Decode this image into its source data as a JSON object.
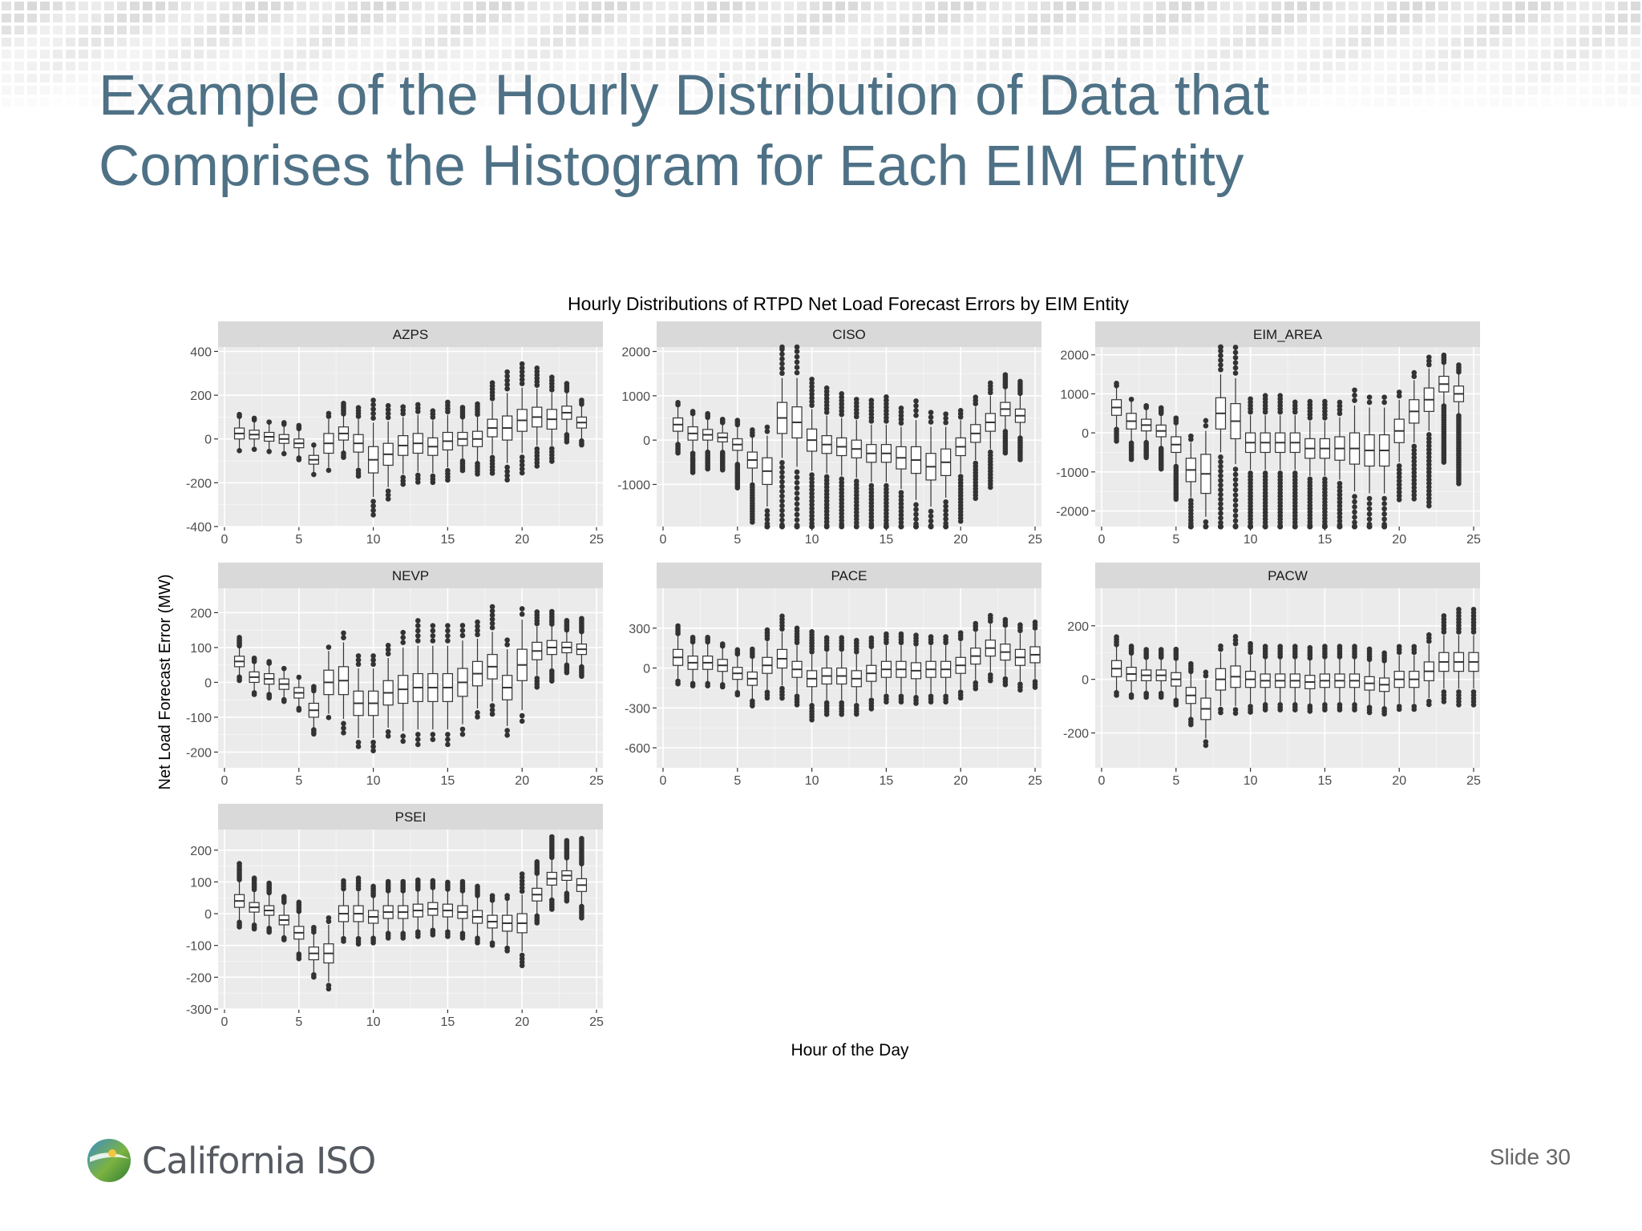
{
  "slide": {
    "title_line1": "Example of the Hourly Distribution of Data that",
    "title_line2": "Comprises the Histogram for Each EIM Entity",
    "slide_number": "Slide 30",
    "logo_text": "California ISO"
  },
  "colors": {
    "title": "#4e7186",
    "panel_bg": "#ebebeb",
    "strip_bg": "#d9d9d9",
    "grid": "#ffffff",
    "box_fill": "#ffffff",
    "box_stroke": "#333333",
    "outlier": "#333333"
  },
  "chart_data": {
    "type": "boxplot",
    "title": "Hourly Distributions of RTPD Net Load Forecast Errors by EIM Entity",
    "xlabel": "Hour of the Day",
    "ylabel": "Net Load Forecast Error (MW)",
    "grid": true,
    "x_ticks": [
      0,
      5,
      10,
      15,
      20,
      25
    ],
    "x_range": [
      0,
      25
    ],
    "panels": [
      {
        "name": "AZPS",
        "ylim": [
          -400,
          420
        ],
        "y_ticks": [
          400,
          200,
          0,
          -200,
          -400
        ],
        "median": [
          25,
          20,
          10,
          0,
          -20,
          -95,
          -20,
          25,
          -20,
          -95,
          -70,
          -30,
          -20,
          -35,
          -10,
          0,
          0,
          50,
          50,
          85,
          100,
          90,
          120,
          75
        ],
        "spread": [
          25,
          20,
          20,
          20,
          20,
          20,
          45,
          30,
          40,
          60,
          50,
          45,
          45,
          40,
          40,
          30,
          35,
          40,
          55,
          50,
          45,
          45,
          30,
          25
        ],
        "whisker": [
          70,
          60,
          60,
          60,
          60,
          60,
          110,
          80,
          110,
          170,
          150,
          130,
          130,
          120,
          120,
          90,
          100,
          120,
          160,
          150,
          130,
          120,
          90,
          75
        ],
        "outliers": [
          [
            2,
            3
          ],
          [
            2,
            6
          ],
          [
            1,
            1
          ],
          [
            2,
            12
          ],
          [
            3,
            18
          ],
          [
            1,
            5
          ],
          [
            2,
            7
          ],
          [
            6,
            25
          ],
          [
            4,
            30
          ],
          [
            5,
            35
          ],
          [
            4,
            30
          ],
          [
            3,
            25
          ],
          [
            3,
            25
          ],
          [
            3,
            25
          ],
          [
            4,
            40
          ],
          [
            5,
            45
          ],
          [
            5,
            45
          ],
          [
            6,
            60
          ],
          [
            5,
            40
          ],
          [
            6,
            50
          ],
          [
            6,
            60
          ],
          [
            5,
            50
          ],
          [
            4,
            40
          ],
          [
            3,
            30
          ]
        ]
      },
      {
        "name": "CISO",
        "ylim": [
          -1950,
          2100
        ],
        "y_ticks": [
          2000,
          1000,
          0,
          -1000
        ],
        "median": [
          350,
          150,
          120,
          60,
          -100,
          -450,
          -700,
          500,
          400,
          0,
          -100,
          -150,
          -200,
          -300,
          -300,
          -400,
          -450,
          -600,
          -500,
          -150,
          150,
          400,
          700,
          550
        ],
        "spread": [
          150,
          150,
          120,
          100,
          130,
          180,
          300,
          350,
          350,
          250,
          200,
          200,
          200,
          200,
          200,
          250,
          300,
          300,
          300,
          200,
          200,
          200,
          150,
          150
        ],
        "whisker": [
          400,
          400,
          350,
          300,
          400,
          500,
          800,
          900,
          1000,
          700,
          650,
          650,
          650,
          650,
          650,
          700,
          900,
          900,
          800,
          600,
          600,
          600,
          450,
          450
        ],
        "outliers": [
          [
            2,
            50
          ],
          [
            2,
            100
          ],
          [
            3,
            100
          ],
          [
            3,
            120
          ],
          [
            3,
            120
          ],
          [
            3,
            150
          ],
          [
            2,
            200
          ],
          [
            7,
            200
          ],
          [
            6,
            250
          ],
          [
            8,
            180
          ],
          [
            8,
            200
          ],
          [
            7,
            180
          ],
          [
            6,
            180
          ],
          [
            7,
            180
          ],
          [
            8,
            200
          ],
          [
            5,
            200
          ],
          [
            4,
            200
          ],
          [
            3,
            180
          ],
          [
            3,
            150
          ],
          [
            3,
            150
          ],
          [
            3,
            120
          ],
          [
            4,
            120
          ],
          [
            6,
            100
          ],
          [
            6,
            100
          ]
        ]
      },
      {
        "name": "EIM_AREA",
        "ylim": [
          -2400,
          2200
        ],
        "y_ticks": [
          2000,
          1000,
          0,
          -1000,
          -2000
        ],
        "median": [
          650,
          300,
          200,
          50,
          -300,
          -950,
          -1050,
          500,
          300,
          -250,
          -250,
          -250,
          -250,
          -400,
          -400,
          -400,
          -400,
          -450,
          -450,
          50,
          550,
          850,
          1250,
          1000
        ],
        "spread": [
          200,
          200,
          150,
          150,
          200,
          300,
          500,
          400,
          450,
          250,
          250,
          250,
          250,
          250,
          250,
          300,
          400,
          400,
          400,
          300,
          300,
          300,
          200,
          200
        ],
        "whisker": [
          500,
          500,
          400,
          400,
          500,
          700,
          1100,
          1000,
          1100,
          700,
          700,
          700,
          700,
          700,
          700,
          800,
          1100,
          1100,
          1100,
          800,
          800,
          800,
          500,
          500
        ],
        "outliers": [
          [
            2,
            60
          ],
          [
            1,
            80
          ],
          [
            2,
            90
          ],
          [
            4,
            120
          ],
          [
            3,
            150
          ],
          [
            2,
            210
          ],
          [
            2,
            240
          ],
          [
            8,
            350
          ],
          [
            6,
            300
          ],
          [
            5,
            360
          ],
          [
            6,
            380
          ],
          [
            6,
            420
          ],
          [
            4,
            340
          ],
          [
            6,
            360
          ],
          [
            6,
            380
          ],
          [
            4,
            300
          ],
          [
            3,
            260
          ],
          [
            2,
            200
          ],
          [
            2,
            200
          ],
          [
            2,
            100
          ],
          [
            2,
            150
          ],
          [
            3,
            200
          ],
          [
            4,
            250
          ],
          [
            4,
            300
          ]
        ]
      },
      {
        "name": "NEVP",
        "ylim": [
          -245,
          270
        ],
        "y_ticks": [
          200,
          100,
          0,
          -100,
          -200
        ],
        "median": [
          60,
          15,
          10,
          -5,
          -30,
          -80,
          0,
          5,
          -60,
          -60,
          -30,
          -20,
          -15,
          -15,
          -15,
          0,
          25,
          45,
          -15,
          50,
          90,
          100,
          100,
          95
        ],
        "spread": [
          15,
          15,
          15,
          15,
          15,
          20,
          35,
          40,
          35,
          35,
          35,
          40,
          40,
          40,
          40,
          40,
          35,
          35,
          35,
          45,
          25,
          20,
          15,
          15
        ],
        "whisker": [
          40,
          40,
          40,
          40,
          40,
          50,
          90,
          110,
          100,
          100,
          100,
          120,
          120,
          120,
          120,
          120,
          100,
          100,
          110,
          130,
          70,
          60,
          45,
          45
        ],
        "outliers": [
          [
            6,
            30
          ],
          [
            3,
            15
          ],
          [
            2,
            30
          ],
          [
            1,
            15
          ],
          [
            1,
            20
          ],
          [
            3,
            25
          ],
          [
            1,
            10
          ],
          [
            2,
            25
          ],
          [
            3,
            20
          ],
          [
            3,
            30
          ],
          [
            3,
            20
          ],
          [
            3,
            20
          ],
          [
            5,
            25
          ],
          [
            4,
            20
          ],
          [
            4,
            25
          ],
          [
            3,
            20
          ],
          [
            4,
            20
          ],
          [
            6,
            30
          ],
          [
            2,
            20
          ],
          [
            2,
            20
          ],
          [
            5,
            40
          ],
          [
            6,
            50
          ],
          [
            6,
            50
          ],
          [
            8,
            60
          ]
        ]
      },
      {
        "name": "PACE",
        "ylim": [
          -750,
          600
        ],
        "y_ticks": [
          300,
          0,
          -300,
          -600
        ],
        "median": [
          80,
          40,
          40,
          20,
          -40,
          -80,
          20,
          70,
          -10,
          -80,
          -60,
          -60,
          -80,
          -40,
          -10,
          -10,
          -20,
          -10,
          -10,
          20,
          90,
          150,
          120,
          80,
          100
        ],
        "spread": [
          60,
          50,
          50,
          45,
          45,
          50,
          60,
          70,
          60,
          60,
          60,
          60,
          60,
          60,
          60,
          60,
          60,
          60,
          60,
          60,
          60,
          60,
          60,
          60,
          60
        ],
        "whisker": [
          160,
          140,
          140,
          130,
          130,
          150,
          180,
          200,
          180,
          180,
          180,
          180,
          180,
          180,
          180,
          180,
          180,
          180,
          180,
          180,
          180,
          180,
          180,
          180,
          180
        ],
        "outliers": [
          [
            4,
            20
          ],
          [
            3,
            15
          ],
          [
            3,
            15
          ],
          [
            2,
            15
          ],
          [
            3,
            20
          ],
          [
            4,
            25
          ],
          [
            4,
            30
          ],
          [
            5,
            40
          ],
          [
            6,
            40
          ],
          [
            8,
            60
          ],
          [
            5,
            50
          ],
          [
            5,
            50
          ],
          [
            5,
            40
          ],
          [
            4,
            40
          ],
          [
            4,
            30
          ],
          [
            4,
            30
          ],
          [
            4,
            30
          ],
          [
            3,
            30
          ],
          [
            3,
            30
          ],
          [
            3,
            30
          ],
          [
            3,
            30
          ],
          [
            3,
            30
          ],
          [
            3,
            30
          ],
          [
            3,
            30
          ],
          [
            3,
            30
          ]
        ]
      },
      {
        "name": "PACW",
        "ylim": [
          -330,
          340
        ],
        "y_ticks": [
          200,
          0,
          -200
        ],
        "median": [
          40,
          20,
          15,
          15,
          0,
          -60,
          -110,
          0,
          10,
          0,
          -5,
          -5,
          -5,
          -10,
          -5,
          -5,
          -5,
          -15,
          -20,
          0,
          0,
          30,
          65,
          65,
          65
        ],
        "spread": [
          30,
          25,
          20,
          20,
          25,
          30,
          40,
          40,
          40,
          30,
          25,
          25,
          25,
          25,
          25,
          25,
          25,
          25,
          25,
          30,
          30,
          35,
          35,
          35,
          35
        ],
        "whisker": [
          80,
          70,
          60,
          60,
          70,
          80,
          110,
          100,
          110,
          90,
          80,
          80,
          80,
          80,
          80,
          80,
          80,
          80,
          80,
          90,
          90,
          100,
          100,
          100,
          100
        ],
        "outliers": [
          [
            4,
            20
          ],
          [
            4,
            20
          ],
          [
            5,
            25
          ],
          [
            5,
            25
          ],
          [
            5,
            30
          ],
          [
            4,
            25
          ],
          [
            2,
            15
          ],
          [
            2,
            15
          ],
          [
            3,
            20
          ],
          [
            4,
            30
          ],
          [
            5,
            30
          ],
          [
            5,
            30
          ],
          [
            5,
            30
          ],
          [
            5,
            30
          ],
          [
            5,
            30
          ],
          [
            5,
            30
          ],
          [
            5,
            30
          ],
          [
            5,
            30
          ],
          [
            4,
            30
          ],
          [
            3,
            20
          ],
          [
            3,
            20
          ],
          [
            3,
            20
          ],
          [
            6,
            40
          ],
          [
            8,
            50
          ],
          [
            8,
            50
          ]
        ]
      },
      {
        "name": "PSEI",
        "ylim": [
          -300,
          265
        ],
        "y_ticks": [
          200,
          100,
          0,
          -100,
          -200,
          -300
        ],
        "median": [
          40,
          20,
          10,
          -20,
          -60,
          -125,
          -125,
          0,
          0,
          -10,
          5,
          5,
          10,
          15,
          10,
          5,
          -10,
          -25,
          -30,
          -30,
          60,
          110,
          120,
          90
        ],
        "spread": [
          20,
          15,
          15,
          15,
          20,
          20,
          30,
          25,
          25,
          20,
          20,
          20,
          20,
          20,
          20,
          20,
          20,
          20,
          25,
          30,
          20,
          20,
          15,
          20
        ],
        "whisker": [
          60,
          50,
          50,
          50,
          60,
          60,
          90,
          70,
          70,
          60,
          60,
          60,
          60,
          60,
          60,
          60,
          60,
          60,
          70,
          90,
          60,
          60,
          50,
          60
        ],
        "outliers": [
          [
            8,
            30
          ],
          [
            7,
            30
          ],
          [
            6,
            25
          ],
          [
            4,
            20
          ],
          [
            5,
            25
          ],
          [
            3,
            20
          ],
          [
            2,
            20
          ],
          [
            4,
            20
          ],
          [
            5,
            25
          ],
          [
            5,
            25
          ],
          [
            5,
            25
          ],
          [
            5,
            25
          ],
          [
            5,
            25
          ],
          [
            4,
            25
          ],
          [
            4,
            25
          ],
          [
            5,
            25
          ],
          [
            5,
            25
          ],
          [
            3,
            20
          ],
          [
            2,
            20
          ],
          [
            6,
            35
          ],
          [
            6,
            35
          ],
          [
            10,
            50
          ],
          [
            10,
            50
          ],
          [
            12,
            60
          ]
        ]
      }
    ]
  }
}
